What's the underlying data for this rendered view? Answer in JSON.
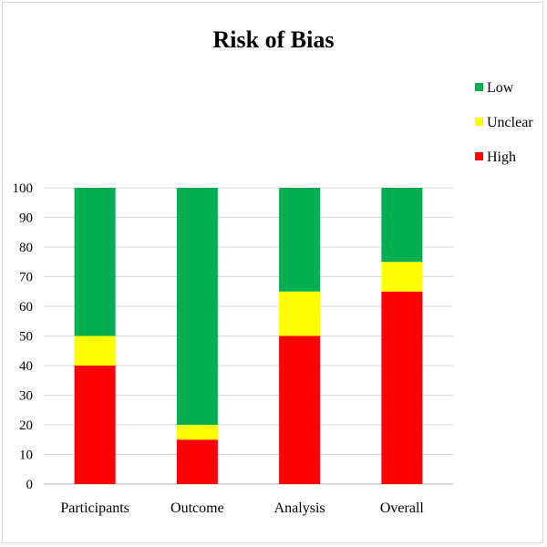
{
  "chart_data": {
    "type": "bar",
    "stacked": true,
    "title": "Risk of Bias",
    "categories": [
      "Participants",
      "Outcome",
      "Analysis",
      "Overall"
    ],
    "series": [
      {
        "name": "High",
        "color": "#ff0000",
        "values": [
          40,
          15,
          50,
          65
        ]
      },
      {
        "name": "Unclear",
        "color": "#ffff00",
        "values": [
          10,
          5,
          15,
          10
        ]
      },
      {
        "name": "Low",
        "color": "#00b050",
        "values": [
          50,
          80,
          35,
          25
        ]
      }
    ],
    "legend_order": [
      "Low",
      "Unclear",
      "High"
    ],
    "ylim": [
      0,
      100
    ],
    "yticks": [
      0,
      10,
      20,
      30,
      40,
      50,
      60,
      70,
      80,
      90,
      100
    ],
    "grid": true,
    "legend_position": "top-right"
  }
}
